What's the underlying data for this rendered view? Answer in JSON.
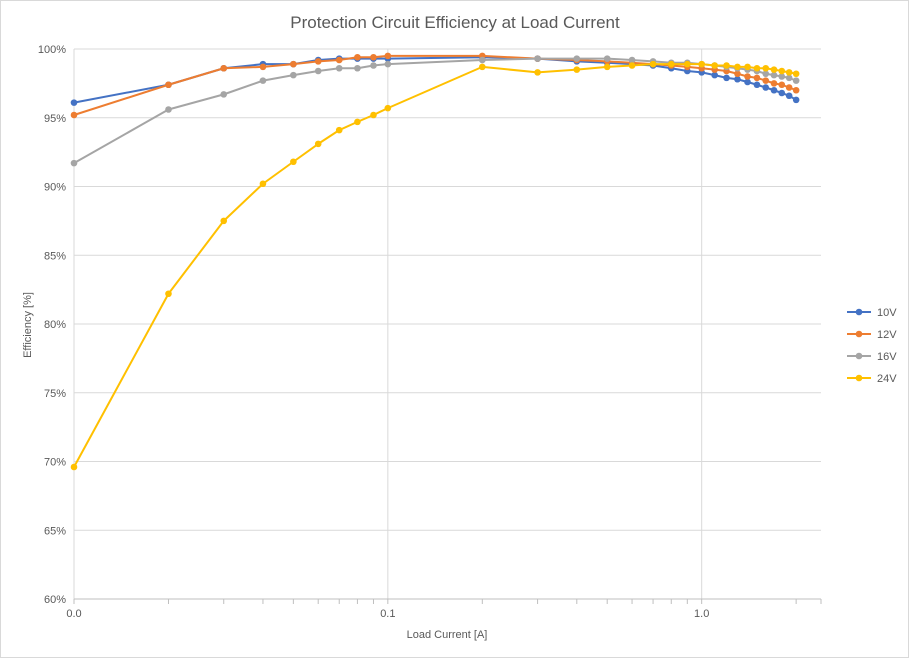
{
  "chart_data": {
    "type": "line",
    "title": "Protection Circuit Efficiency at Load Current",
    "xlabel": "Load Current [A]",
    "ylabel": "Efficiency [%]",
    "x_scale": "log",
    "xlim": [
      0.01,
      2.4
    ],
    "ylim": [
      60,
      100
    ],
    "x_ticks": [
      {
        "value": 0.01,
        "label": "0.0"
      },
      {
        "value": 0.1,
        "label": "0.1"
      },
      {
        "value": 1.0,
        "label": "1.0"
      }
    ],
    "y_ticks": [
      {
        "value": 60,
        "label": "60%"
      },
      {
        "value": 65,
        "label": "65%"
      },
      {
        "value": 70,
        "label": "70%"
      },
      {
        "value": 75,
        "label": "75%"
      },
      {
        "value": 80,
        "label": "80%"
      },
      {
        "value": 85,
        "label": "85%"
      },
      {
        "value": 90,
        "label": "90%"
      },
      {
        "value": 95,
        "label": "95%"
      },
      {
        "value": 100,
        "label": "100%"
      }
    ],
    "grid": true,
    "legend_position": "right",
    "x": [
      0.01,
      0.02,
      0.03,
      0.04,
      0.05,
      0.06,
      0.07,
      0.08,
      0.09,
      0.1,
      0.2,
      0.3,
      0.4,
      0.5,
      0.6,
      0.7,
      0.8,
      0.9,
      1.0,
      1.1,
      1.2,
      1.3,
      1.4,
      1.5,
      1.6,
      1.7,
      1.8,
      1.9,
      2.0
    ],
    "series": [
      {
        "name": "10V",
        "color": "#4472C4",
        "values": [
          96.1,
          97.4,
          98.6,
          98.9,
          98.9,
          99.2,
          99.3,
          99.3,
          99.3,
          99.3,
          99.4,
          99.3,
          99.1,
          99.0,
          98.9,
          98.8,
          98.6,
          98.4,
          98.3,
          98.1,
          97.9,
          97.8,
          97.6,
          97.4,
          97.2,
          97.0,
          96.8,
          96.6,
          96.3
        ]
      },
      {
        "name": "12V",
        "color": "#ED7D31",
        "values": [
          95.2,
          97.4,
          98.6,
          98.7,
          98.9,
          99.1,
          99.2,
          99.4,
          99.4,
          99.5,
          99.5,
          99.3,
          99.2,
          99.1,
          99.0,
          98.9,
          98.8,
          98.7,
          98.6,
          98.5,
          98.4,
          98.2,
          98.0,
          97.9,
          97.7,
          97.5,
          97.4,
          97.2,
          97.0
        ]
      },
      {
        "name": "16V",
        "color": "#A5A5A5",
        "values": [
          91.7,
          95.6,
          96.7,
          97.7,
          98.1,
          98.4,
          98.6,
          98.6,
          98.8,
          98.9,
          99.2,
          99.3,
          99.3,
          99.3,
          99.2,
          99.1,
          99.0,
          99.0,
          98.9,
          98.8,
          98.7,
          98.6,
          98.5,
          98.4,
          98.2,
          98.1,
          98.0,
          97.9,
          97.7
        ]
      },
      {
        "name": "24V",
        "color": "#FFC000",
        "values": [
          69.6,
          82.2,
          87.5,
          90.2,
          91.8,
          93.1,
          94.1,
          94.7,
          95.2,
          95.7,
          98.7,
          98.3,
          98.5,
          98.7,
          98.8,
          98.9,
          98.9,
          98.9,
          98.9,
          98.8,
          98.8,
          98.7,
          98.7,
          98.6,
          98.6,
          98.5,
          98.4,
          98.3,
          98.2
        ]
      }
    ]
  }
}
